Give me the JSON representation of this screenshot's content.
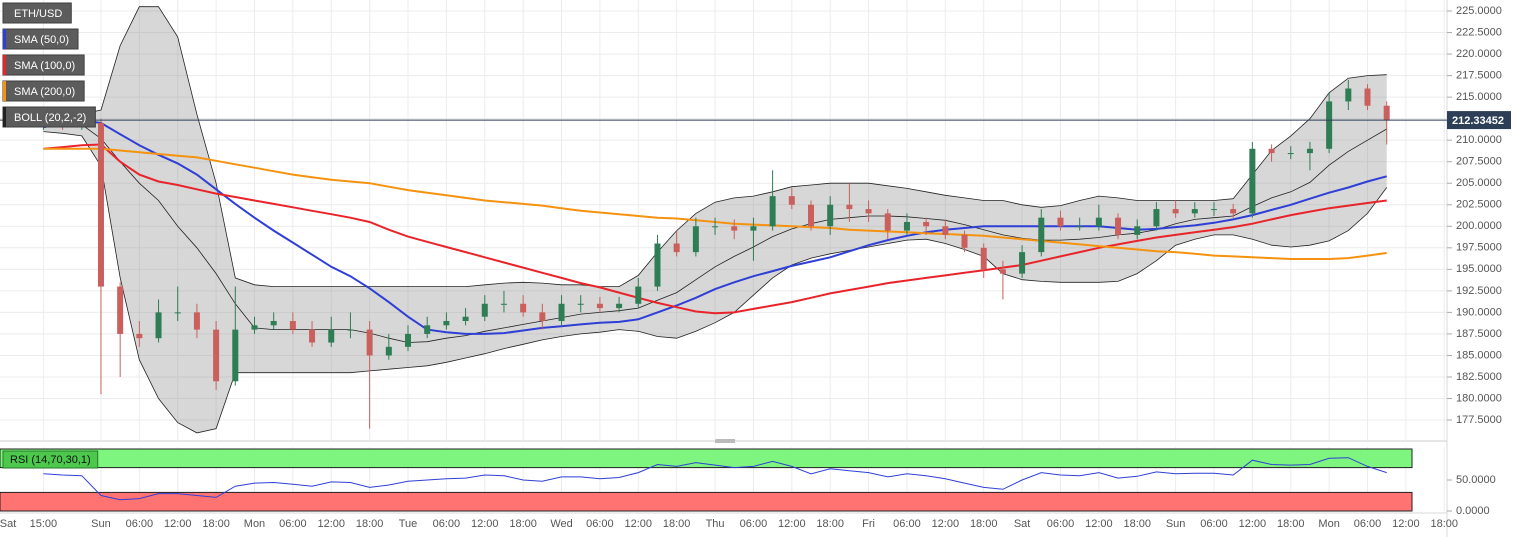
{
  "chart_data": {
    "type": "candlestick",
    "name": "ETH/USD",
    "x_start_label": "Sat",
    "categories": [
      "15:00",
      null,
      null,
      "Sun",
      null,
      "06:00",
      null,
      "12:00",
      null,
      "18:00",
      null,
      "Mon",
      null,
      "06:00",
      null,
      "12:00",
      null,
      "18:00",
      null,
      "Tue",
      null,
      "06:00",
      null,
      "12:00",
      null,
      "18:00",
      null,
      "Wed",
      null,
      "06:00",
      null,
      "12:00",
      null,
      "18:00",
      null,
      "Thu",
      null,
      "06:00",
      null,
      "12:00",
      null,
      "18:00",
      null,
      "Fri",
      null,
      "06:00",
      null,
      "12:00",
      null,
      "18:00",
      null,
      "Sat",
      null,
      "06:00",
      null,
      "12:00",
      null,
      "18:00",
      null,
      "Sun",
      null,
      "06:00",
      null,
      "12:00",
      null,
      "18:00",
      null,
      "Mon",
      null,
      "06:00",
      null,
      "12:00",
      null,
      "18:00"
    ],
    "open": [
      212,
      212.5,
      212,
      212,
      193,
      187.5,
      187,
      190,
      190,
      188,
      182,
      188,
      188.5,
      189,
      188,
      186.5,
      188,
      188,
      185,
      186,
      187.5,
      188.5,
      189,
      189.5,
      191,
      191,
      190,
      189,
      191,
      191,
      190.5,
      191,
      193,
      198,
      197,
      200,
      200,
      199.5,
      200,
      203.5,
      202.5,
      200,
      202.5,
      202,
      201.5,
      199.5,
      200.5,
      200,
      199,
      197.5,
      195,
      194.5,
      197,
      201,
      200,
      200,
      201,
      199,
      200,
      202,
      201.5,
      202,
      202,
      201.5,
      209,
      208.5,
      208.5,
      209,
      214.5,
      216,
      214,
      null,
      null,
      null
    ],
    "high": [
      213.3,
      213.2,
      212.8,
      212.5,
      193.5,
      189,
      191.5,
      193,
      191,
      189,
      193,
      189.5,
      190,
      190,
      189,
      189.5,
      190,
      189,
      187.5,
      188.5,
      189.5,
      190,
      190.5,
      192,
      192.5,
      192,
      191,
      192,
      192,
      191.8,
      191.8,
      194,
      199,
      199.5,
      201,
      201,
      200.8,
      201,
      206.5,
      204.5,
      203,
      203.5,
      205,
      203,
      202,
      201.5,
      201,
      200.8,
      199.5,
      198,
      196,
      197.8,
      202,
      201.8,
      201,
      202.5,
      201.5,
      200.8,
      202.8,
      203,
      202.8,
      202.8,
      202.6,
      209.8,
      209.5,
      209.3,
      209.8,
      215.5,
      217,
      216.5,
      214.5,
      null,
      null,
      null
    ],
    "low": [
      211.2,
      211.2,
      211.2,
      180.5,
      182.5,
      186,
      186.5,
      189,
      187,
      181,
      181.5,
      187.5,
      188,
      187.5,
      186,
      186,
      187,
      176.5,
      184.5,
      185.5,
      187,
      188,
      188.5,
      189,
      190,
      189.5,
      188,
      188.5,
      190,
      190,
      190,
      190.5,
      192.5,
      196.5,
      196.5,
      199,
      198.5,
      196,
      199.5,
      202,
      199.5,
      199,
      200.5,
      200.5,
      198.5,
      199,
      199,
      198.5,
      197,
      194,
      191.5,
      194,
      196.5,
      199.5,
      199.5,
      199.5,
      198.5,
      198.5,
      199.5,
      201,
      201,
      201.2,
      201,
      201,
      207.5,
      207.8,
      206.5,
      208.5,
      213.5,
      213.5,
      209.5,
      null,
      null,
      null
    ],
    "close": [
      212.5,
      212,
      212,
      193,
      187.5,
      187,
      190,
      190,
      188,
      182,
      188,
      188.5,
      189,
      188,
      186.5,
      188,
      188,
      185,
      186,
      187.5,
      188.5,
      189,
      189.5,
      191,
      191,
      190,
      189,
      191,
      191,
      190.5,
      191,
      193,
      198,
      197,
      200,
      200,
      199.5,
      200,
      203.5,
      202.5,
      200,
      202.5,
      202,
      201.5,
      199.5,
      200.5,
      200,
      199,
      197.5,
      195,
      194.5,
      197,
      201,
      200,
      200,
      201,
      199,
      200,
      202,
      201.5,
      202,
      202,
      201.5,
      209,
      208.5,
      208.5,
      209,
      214.5,
      216,
      214,
      212.33,
      null,
      null,
      null
    ],
    "up_color": "#2e7d55",
    "down_color": "#c9605e",
    "last_price": {
      "value": 212.33452,
      "label": "212.33452"
    },
    "last_price_color": "#2d3e57",
    "series": [
      {
        "name": "SMA (50,0)",
        "color": "#2f3fd6",
        "values": [
          211.5,
          212,
          212.3,
          212,
          210.7,
          209.4,
          208.3,
          207.3,
          206,
          204.3,
          202.6,
          201,
          199.5,
          198.1,
          196.7,
          195.3,
          194.2,
          192.8,
          191.2,
          189.5,
          188,
          187.7,
          187.5,
          187.5,
          187.6,
          187.9,
          188.2,
          188.4,
          188.6,
          188.8,
          188.9,
          189.2,
          190,
          190.8,
          191.7,
          192.7,
          193.5,
          194.2,
          194.8,
          195.4,
          195.9,
          196.4,
          197.1,
          197.8,
          198.4,
          198.9,
          199.3,
          199.6,
          199.8,
          200,
          200,
          200,
          200,
          200,
          200,
          200,
          199.8,
          199.6,
          199.7,
          199.9,
          200.1,
          200.4,
          200.8,
          201.3,
          201.9,
          202.5,
          203.2,
          203.9,
          204.5,
          205.2,
          205.8,
          null,
          null,
          null
        ]
      },
      {
        "name": "SMA (100,0)",
        "color": "#e8242a",
        "values": [
          209,
          209.2,
          209.4,
          209.5,
          207.5,
          206,
          205.2,
          204.8,
          204.3,
          203.8,
          203.4,
          203,
          202.6,
          202.2,
          201.8,
          201.4,
          201,
          200.5,
          199.6,
          198.8,
          198.2,
          197.6,
          197,
          196.4,
          195.8,
          195.2,
          194.6,
          194,
          193.4,
          192.9,
          192.3,
          191.7,
          191.1,
          190.6,
          190.1,
          189.9,
          190,
          190.4,
          190.8,
          191.2,
          191.7,
          192.2,
          192.6,
          193,
          193.4,
          193.7,
          194,
          194.3,
          194.6,
          194.9,
          195.2,
          195.5,
          196,
          196.5,
          197,
          197.5,
          197.9,
          198.3,
          198.7,
          199,
          199.3,
          199.6,
          199.9,
          200.3,
          200.8,
          201.3,
          201.7,
          202.1,
          202.4,
          202.7,
          203,
          null,
          null,
          null
        ]
      },
      {
        "name": "SMA (200,0)",
        "color": "#f5920f",
        "values": [
          209,
          209,
          209,
          209,
          208.8,
          208.6,
          208.4,
          208.2,
          208,
          207.6,
          207.2,
          206.8,
          206.4,
          206,
          205.7,
          205.4,
          205.2,
          205,
          204.6,
          204.2,
          203.9,
          203.6,
          203.3,
          203,
          202.8,
          202.6,
          202.4,
          202.1,
          201.8,
          201.6,
          201.4,
          201.2,
          201,
          200.9,
          200.7,
          200.5,
          200.3,
          200.2,
          200.1,
          200,
          199.9,
          199.8,
          199.6,
          199.5,
          199.4,
          199.3,
          199.2,
          199.1,
          199,
          198.9,
          198.7,
          198.5,
          198.3,
          198.1,
          197.9,
          197.7,
          197.5,
          197.3,
          197.1,
          197,
          196.8,
          196.6,
          196.5,
          196.4,
          196.3,
          196.2,
          196.2,
          196.2,
          196.3,
          196.6,
          196.9,
          null,
          null,
          null
        ]
      }
    ],
    "bollinger": {
      "name": "BOLL (20,2,-2)",
      "color": "#222222",
      "fill": "rgba(140,140,140,0.35)",
      "upper": [
        213,
        213,
        213,
        213.5,
        221,
        225.5,
        225.5,
        222,
        213,
        205,
        194,
        193.2,
        193,
        193,
        193,
        193,
        193,
        193,
        193,
        193,
        193,
        193,
        193,
        193.2,
        193.4,
        193.5,
        193.4,
        193.2,
        193.2,
        193,
        193,
        194.3,
        197,
        199.5,
        201.5,
        202.8,
        203.3,
        203.5,
        204,
        204.6,
        204.8,
        205,
        205,
        205,
        204.7,
        204.4,
        204,
        203.6,
        203.3,
        203,
        203,
        202.5,
        202.2,
        202.4,
        203,
        203.5,
        203.3,
        203,
        203,
        203,
        203,
        203,
        203.2,
        206,
        208.8,
        210.5,
        212.5,
        215.5,
        217.2,
        217.5,
        217.6,
        null,
        null,
        null
      ],
      "middle": [
        212,
        212,
        211.8,
        210.2,
        207.5,
        205,
        203,
        200,
        197.5,
        194.5,
        191,
        188.2,
        188,
        188,
        188,
        188,
        188,
        187.6,
        187,
        186.5,
        186.6,
        187,
        187.3,
        187.8,
        188.2,
        188.6,
        189,
        189.4,
        189.8,
        190,
        190.2,
        190.5,
        191.4,
        192.3,
        193.8,
        195.3,
        196.5,
        197.6,
        198.8,
        199.7,
        200.3,
        200.8,
        201,
        201.2,
        201.2,
        201.1,
        200.9,
        200.7,
        200.2,
        199.6,
        199,
        198.6,
        198.4,
        198.4,
        198.5,
        198.7,
        199,
        199.2,
        199.6,
        200.3,
        200.8,
        201,
        201.2,
        202.3,
        203.3,
        204,
        205.1,
        207.1,
        208.7,
        210,
        211.3,
        null,
        null,
        null
      ],
      "lower": [
        211,
        210.8,
        210.5,
        207,
        194,
        184.5,
        180,
        177.2,
        176,
        176.5,
        183,
        183,
        183,
        183,
        183,
        183,
        183,
        183.2,
        183.4,
        183.6,
        183.8,
        184.2,
        184.7,
        185.2,
        185.8,
        186.3,
        186.8,
        187.2,
        187.5,
        187.7,
        188,
        187.8,
        187.2,
        187,
        187.8,
        188.8,
        190,
        192,
        194,
        195.5,
        196.3,
        196.8,
        197.2,
        197.6,
        198,
        198.4,
        198.5,
        198,
        197.3,
        196.5,
        194.5,
        193.8,
        193.6,
        193.5,
        193.5,
        193.5,
        193.6,
        194.5,
        196,
        197.8,
        198.5,
        199,
        199,
        198.5,
        197.8,
        197.6,
        197.8,
        198.3,
        199.5,
        201.5,
        204.5,
        null,
        null,
        null
      ]
    },
    "ylim": [
      175.18,
      226.28
    ],
    "yticks": [
      {
        "value": 177.5,
        "label": "177.5000"
      },
      {
        "value": 180,
        "label": "180.0000"
      },
      {
        "value": 182.5,
        "label": "182.5000"
      },
      {
        "value": 185,
        "label": "185.0000"
      },
      {
        "value": 187.5,
        "label": "187.5000"
      },
      {
        "value": 190,
        "label": "190.0000"
      },
      {
        "value": 192.5,
        "label": "192.5000"
      },
      {
        "value": 195,
        "label": "195.0000"
      },
      {
        "value": 197.5,
        "label": "197.5000"
      },
      {
        "value": 200,
        "label": "200.0000"
      },
      {
        "value": 202.5,
        "label": "202.5000"
      },
      {
        "value": 205,
        "label": "205.0000"
      },
      {
        "value": 207.5,
        "label": "207.5000"
      },
      {
        "value": 210,
        "label": "210.0000"
      },
      {
        "value": 212.5,
        "label": "212.5000"
      },
      {
        "value": 215,
        "label": "215.0000"
      },
      {
        "value": 217.5,
        "label": "217.5000"
      },
      {
        "value": 220,
        "label": "220.0000"
      },
      {
        "value": 222.5,
        "label": "222.5000"
      },
      {
        "value": 225,
        "label": "225.0000"
      }
    ],
    "grid": true,
    "indicator": {
      "type": "line",
      "name": "RSI (14,70,30,1)",
      "color": "#2f3fd6",
      "overbought": 70,
      "oversold": 30,
      "overbought_color": "#7ef57e",
      "oversold_color": "#ff7373",
      "ylim": [
        0,
        100
      ],
      "yticks": [
        {
          "value": 0,
          "label": "0.0000"
        },
        {
          "value": 50,
          "label": "50.0000"
        }
      ],
      "values": [
        60,
        58,
        57,
        25,
        18,
        20,
        28,
        28,
        25,
        22,
        40,
        45,
        46,
        43,
        40,
        47,
        46,
        38,
        42,
        48,
        50,
        52,
        53,
        58,
        57,
        50,
        48,
        55,
        55,
        52,
        54,
        62,
        75,
        72,
        78,
        74,
        70,
        72,
        80,
        72,
        60,
        68,
        65,
        62,
        55,
        60,
        57,
        52,
        45,
        38,
        35,
        50,
        62,
        58,
        57,
        62,
        53,
        56,
        63,
        60,
        61,
        61,
        58,
        82,
        75,
        74,
        75,
        85,
        86,
        72,
        62,
        null,
        null,
        null
      ]
    }
  }
}
